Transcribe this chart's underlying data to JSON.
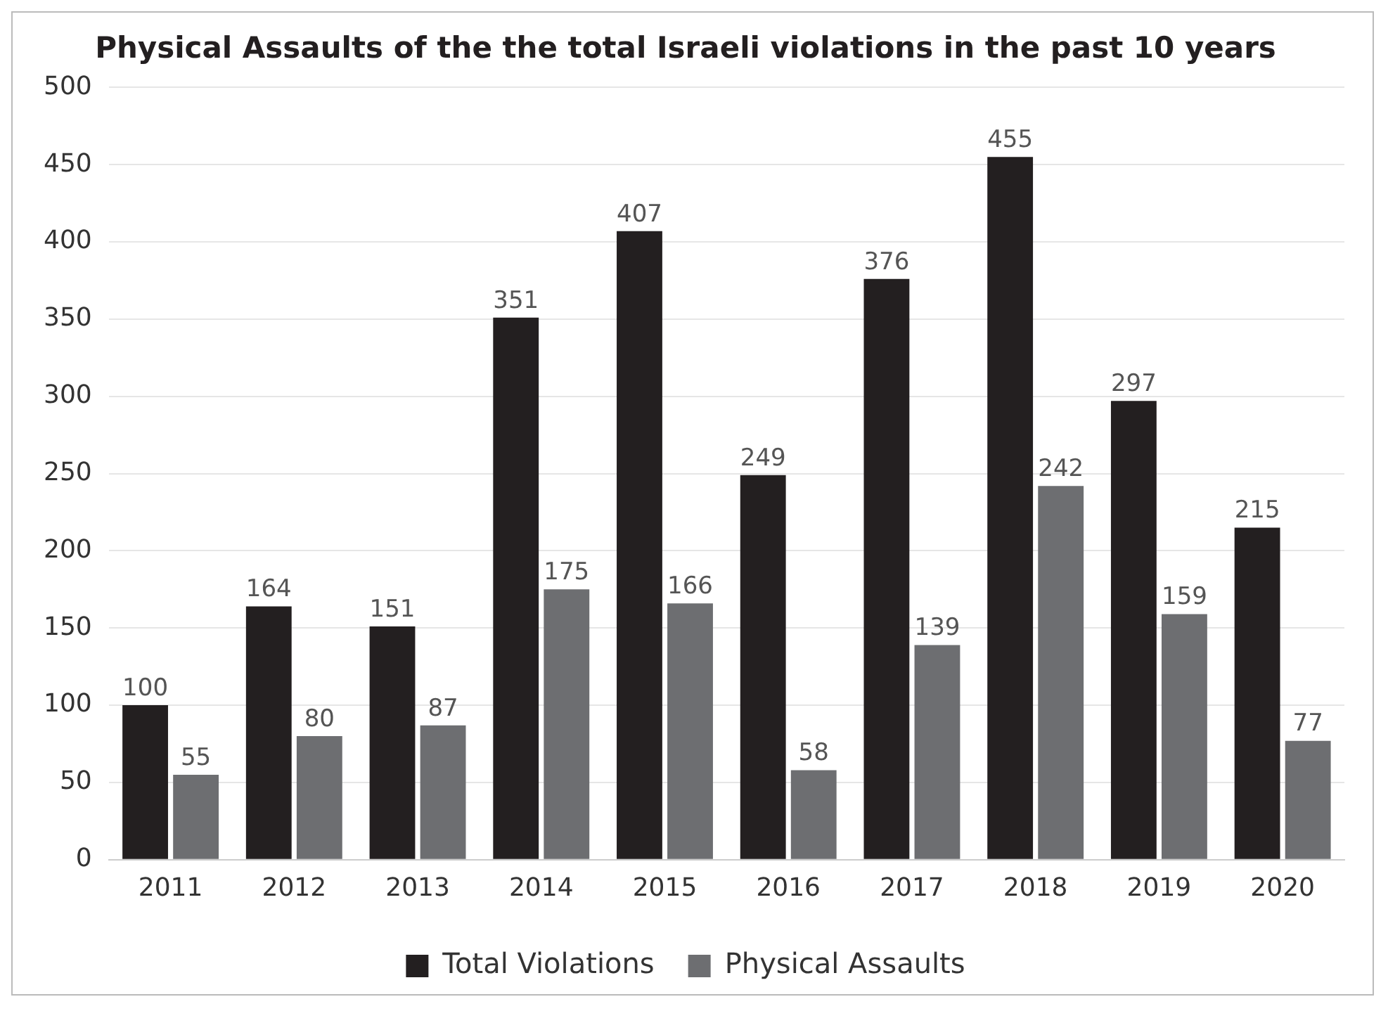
{
  "chart_data": {
    "type": "bar",
    "title": "Physical Assaults of the the total Israeli violations in the past 10 years",
    "categories": [
      "2011",
      "2012",
      "2013",
      "2014",
      "2015",
      "2016",
      "2017",
      "2018",
      "2019",
      "2020"
    ],
    "series": [
      {
        "name": "Total Violations",
        "color": "#231f20",
        "values": [
          100,
          164,
          151,
          351,
          407,
          249,
          376,
          455,
          297,
          215
        ]
      },
      {
        "name": "Physical Assaults",
        "color": "#6d6e71",
        "values": [
          55,
          80,
          87,
          175,
          166,
          58,
          139,
          242,
          159,
          77
        ]
      }
    ],
    "ylim": [
      0,
      500
    ],
    "yticks": [
      0,
      50,
      100,
      150,
      200,
      250,
      300,
      350,
      400,
      450,
      500
    ],
    "grid": "y",
    "legend": "bottom",
    "data_labels": true
  }
}
